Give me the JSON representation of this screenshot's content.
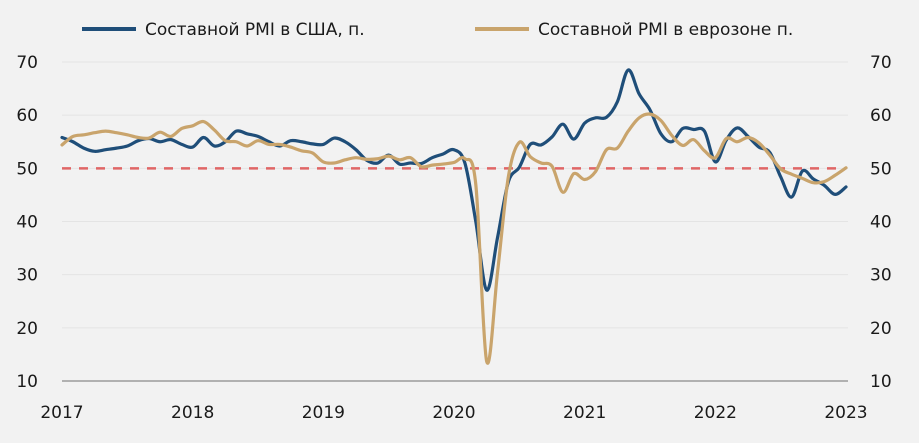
{
  "chart_data": {
    "type": "line",
    "title": "",
    "xlabel": "",
    "ylabel": "",
    "x_start": "2017-01",
    "x_step": "month",
    "xlim": [
      2017,
      2023
    ],
    "ylim": [
      10,
      70
    ],
    "y_ticks": [
      "10",
      "20",
      "30",
      "40",
      "50",
      "60",
      "70"
    ],
    "x_ticks": [
      "2017",
      "2018",
      "2019",
      "2020",
      "2021",
      "2022",
      "2023"
    ],
    "grid": true,
    "legend_position": "top",
    "reference_line": 50,
    "series": [
      {
        "name": "Составной PMI в США, п.",
        "color": "#1f4e79",
        "values": [
          55.8,
          55,
          53.8,
          53.2,
          53.5,
          53.8,
          54.2,
          55.2,
          55.6,
          55,
          55.4,
          54.5,
          54,
          55.8,
          54.2,
          55,
          57,
          56.5,
          56,
          55,
          54.2,
          55.2,
          55,
          54.6,
          54.5,
          55.7,
          55,
          53.5,
          51.5,
          51,
          52.5,
          50.8,
          51,
          50.9,
          52,
          52.7,
          53.5,
          51,
          40,
          27.1,
          37,
          47.5,
          50.2,
          54.5,
          54.4,
          55.9,
          58.3,
          55.5,
          58.5,
          59.5,
          59.6,
          62.5,
          68.5,
          64,
          61,
          56.5,
          55,
          57.5,
          57.3,
          57,
          51.2,
          55.3,
          57.6,
          56,
          54,
          53,
          48.4,
          44.6,
          49.5,
          48,
          46.8,
          45.1,
          46.5
        ]
      },
      {
        "name": "Составной PMI в еврозоне п.",
        "color": "#c9a46c",
        "values": [
          54.4,
          56,
          56.3,
          56.7,
          57,
          56.7,
          56.3,
          55.8,
          55.7,
          56.8,
          56,
          57.5,
          58,
          58.8,
          57.2,
          55.2,
          55,
          54.2,
          55.2,
          54.5,
          54.5,
          54,
          53.3,
          52.9,
          51.2,
          51,
          51.6,
          52,
          51.7,
          51.8,
          52.3,
          51.6,
          52,
          50.3,
          50.6,
          50.8,
          51.1,
          51.8,
          47,
          13.7,
          30.5,
          48.5,
          54.9,
          52.2,
          51,
          50.4,
          45.5,
          49,
          47.9,
          49.4,
          53.5,
          53.8,
          57,
          59.5,
          60.2,
          59,
          56.2,
          54.3,
          55.4,
          53.3,
          52,
          55.6,
          55,
          55.8,
          54.8,
          52.5,
          49.9,
          48.9,
          48.1,
          47.3,
          47.5,
          48.7,
          50.1
        ]
      }
    ],
    "reference_color": "#e06666"
  }
}
